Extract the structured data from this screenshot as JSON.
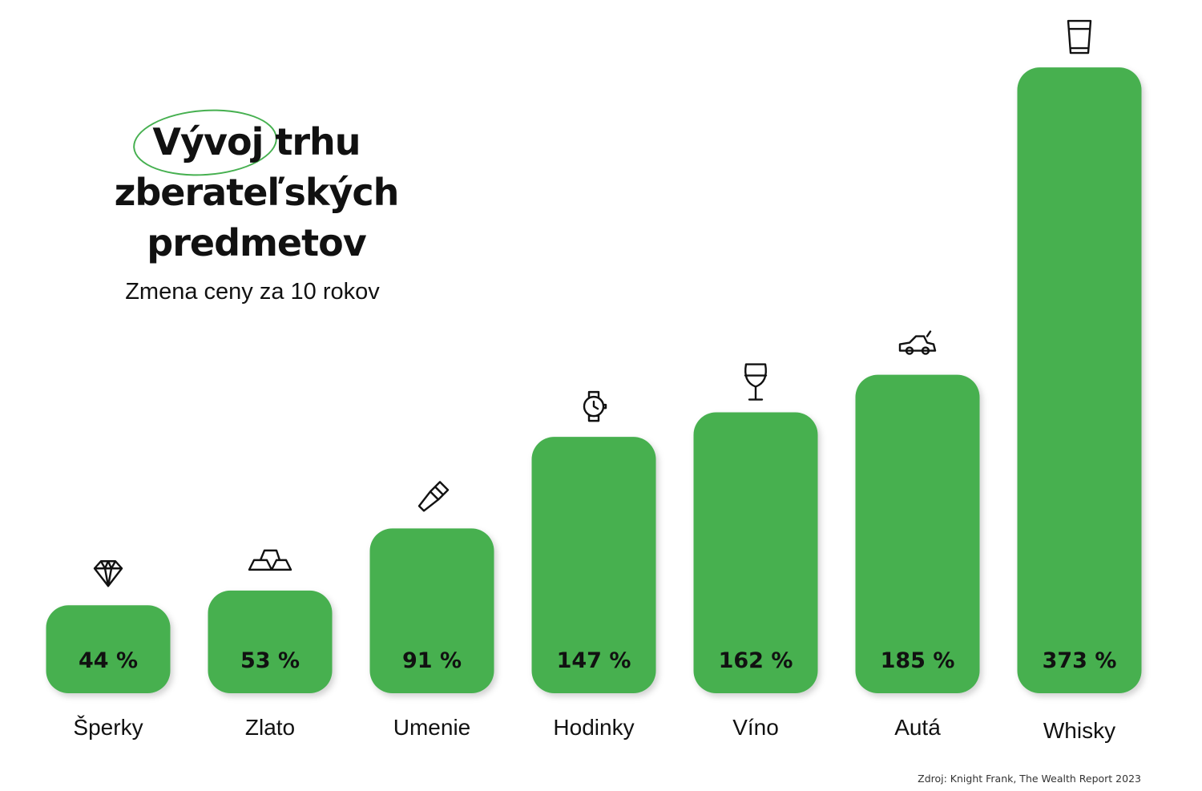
{
  "chart_data": {
    "type": "bar",
    "title": "Vývoj trhu zberateľských predmetov",
    "title_lines": [
      "Vývoj trhu",
      "zberateľských",
      "predmetov"
    ],
    "subtitle": "Zmena ceny za 10 rokov",
    "categories": [
      "Šperky",
      "Zlato",
      "Umenie",
      "Hodinky",
      "Víno",
      "Autá",
      "Whisky"
    ],
    "values": [
      44,
      53,
      91,
      147,
      162,
      185,
      373
    ],
    "value_labels": [
      "44 %",
      "53 %",
      "91 %",
      "147 %",
      "162 %",
      "185 %",
      "373 %"
    ],
    "icons": [
      "diamond-icon",
      "gold-bars-icon",
      "paintbrush-icon",
      "watch-icon",
      "wine-glass-icon",
      "car-icon",
      "whisky-glass-icon"
    ],
    "unit": "%",
    "bar_color": "#46b050",
    "source": "Zdroj: Knight Frank, The Wealth Report 2023"
  }
}
